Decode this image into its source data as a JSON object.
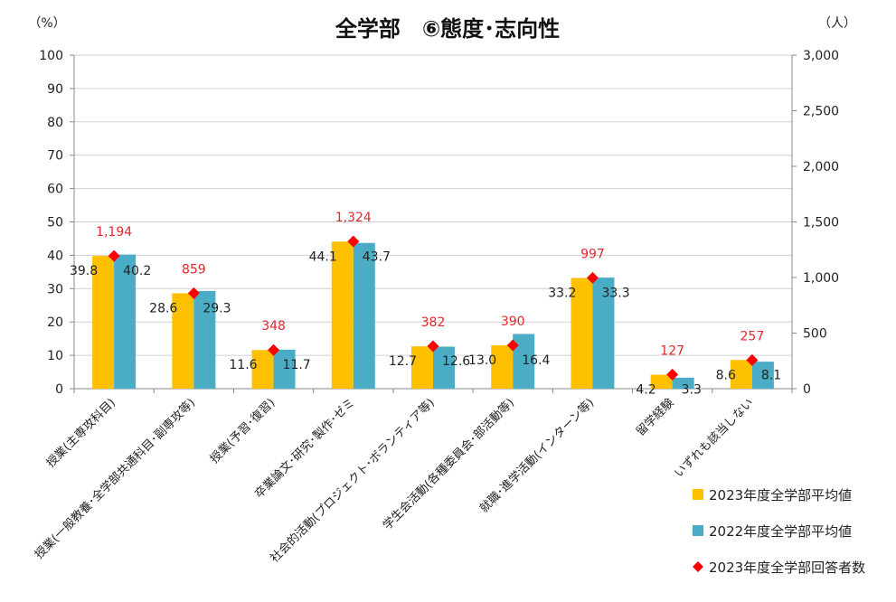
{
  "chart_data": {
    "type": "bar",
    "title": "全学部　⑥態度･志向性",
    "left_axis_unit": "（%）",
    "right_axis_unit": "（人）",
    "ylim": [
      0,
      100
    ],
    "y_ticks": [
      0,
      10,
      20,
      30,
      40,
      50,
      60,
      70,
      80,
      90,
      100
    ],
    "y2lim": [
      0,
      3000
    ],
    "y2_ticks": [
      0,
      500,
      1000,
      1500,
      2000,
      2500,
      3000
    ],
    "y2_tick_labels": [
      "0",
      "500",
      "1,000",
      "1,500",
      "2,000",
      "2,500",
      "3,000"
    ],
    "grid": true,
    "legend_position": "bottom-right",
    "categories": [
      "授業(主専攻科目)",
      "授業(一般教養･全学部共通科目･副専攻等)",
      "授業(予習･復習)",
      "卒業論文･研究･製作･ゼミ",
      "社会的活動(プロジェクト･ボランティア等)",
      "学生会活動(各種委員会･部活動等)",
      "就職･進学活動(インターン等)",
      "留学経験",
      "いずれも該当しない"
    ],
    "series": [
      {
        "name": "2023年度全学部平均値",
        "type": "bar",
        "axis": "left",
        "color": "#ffc000",
        "values": [
          39.8,
          28.6,
          11.6,
          44.1,
          12.7,
          13.0,
          33.2,
          4.2,
          8.6
        ],
        "labels": [
          "39.8",
          "28.6",
          "11.6",
          "44.1",
          "12.7",
          "13.0",
          "33.2",
          "4.2",
          "8.6"
        ]
      },
      {
        "name": "2022年度全学部平均値",
        "type": "bar",
        "axis": "left",
        "color": "#4bacc6",
        "values": [
          40.2,
          29.3,
          11.7,
          43.7,
          12.6,
          16.4,
          33.3,
          3.3,
          8.1
        ],
        "labels": [
          "40.2",
          "29.3",
          "11.7",
          "43.7",
          "12.6",
          "16.4",
          "33.3",
          "3.3",
          "8.1"
        ]
      },
      {
        "name": "2023年度全学部回答者数",
        "type": "scatter",
        "axis": "right",
        "color": "#ff0000",
        "label_color": "#e8262e",
        "values": [
          1194,
          859,
          348,
          1324,
          382,
          390,
          997,
          127,
          257
        ],
        "labels": [
          "1,194",
          "859",
          "348",
          "1,324",
          "382",
          "390",
          "997",
          "127",
          "257"
        ]
      }
    ]
  }
}
